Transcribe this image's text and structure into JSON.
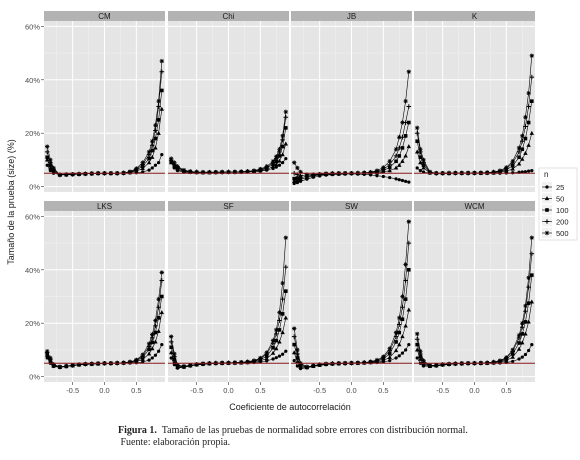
{
  "chart_data": {
    "type": "line",
    "panels": [
      "CM",
      "Chi",
      "JB",
      "K",
      "LKS",
      "SF",
      "SW",
      "WCM"
    ],
    "xlabel": "Coeficiente de autocorrelación",
    "ylabel": "Tamaño de la prueba (size) (%)",
    "x_ticks": [
      "-0.5",
      "0.0",
      "0.5"
    ],
    "x_tick_values": [
      -0.5,
      0.0,
      0.5
    ],
    "y_ticks": [
      "0%",
      "20%",
      "40%",
      "60%"
    ],
    "y_tick_values": [
      0,
      20,
      40,
      60
    ],
    "xlim": [
      -0.95,
      0.95
    ],
    "ylim": [
      -2,
      62
    ],
    "reference_line": 5,
    "grid": true,
    "legend": {
      "title": "n",
      "position": "right",
      "entries": [
        {
          "label": "25",
          "symbol": "dot"
        },
        {
          "label": "50",
          "symbol": "triangle"
        },
        {
          "label": "100",
          "symbol": "square"
        },
        {
          "label": "200",
          "symbol": "plus"
        },
        {
          "label": "500",
          "symbol": "star"
        }
      ]
    },
    "x": [
      -0.9,
      -0.85,
      -0.8,
      -0.7,
      -0.6,
      -0.5,
      -0.4,
      -0.3,
      -0.2,
      -0.1,
      0.0,
      0.1,
      0.2,
      0.3,
      0.4,
      0.5,
      0.6,
      0.7,
      0.75,
      0.8,
      0.85,
      0.9
    ],
    "series_names": [
      "25",
      "50",
      "100",
      "200",
      "500"
    ],
    "data": {
      "CM": [
        [
          8,
          6,
          5,
          4.6,
          4.7,
          4.8,
          4.8,
          4.9,
          4.9,
          5,
          5,
          5,
          5,
          5,
          5.1,
          5.2,
          5.5,
          6.2,
          7,
          8,
          9,
          12
        ],
        [
          10,
          7,
          5.5,
          4.5,
          4.5,
          4.6,
          4.7,
          4.8,
          4.9,
          5,
          5,
          5,
          5,
          5.1,
          5.3,
          5.8,
          6.8,
          9,
          11,
          14.5,
          20,
          29
        ],
        [
          11,
          8,
          6,
          4.4,
          4.5,
          4.6,
          4.7,
          4.8,
          4.9,
          5,
          5,
          5,
          5,
          5.1,
          5.4,
          6.2,
          7.6,
          10.5,
          13.5,
          18,
          25,
          36
        ],
        [
          13,
          9,
          6.5,
          4.4,
          4.5,
          4.6,
          4.7,
          4.8,
          4.9,
          5,
          5,
          5,
          5,
          5.1,
          5.5,
          6.5,
          8.3,
          12,
          15.5,
          21,
          30,
          43
        ],
        [
          15,
          10,
          7,
          4.4,
          4.5,
          4.6,
          4.7,
          4.8,
          4.9,
          5,
          5,
          5,
          5,
          5.2,
          5.6,
          6.8,
          9,
          13,
          17,
          23,
          32,
          47
        ]
      ],
      "Chi": [
        [
          9,
          7,
          6,
          5.4,
          5.3,
          5.2,
          5.2,
          5.3,
          5.3,
          5.3,
          5.4,
          5.4,
          5.4,
          5.5,
          5.6,
          5.8,
          6.2,
          6.8,
          7.3,
          8,
          9,
          10.5
        ],
        [
          9,
          7.5,
          6.5,
          5.6,
          5.4,
          5.3,
          5.3,
          5.3,
          5.3,
          5.4,
          5.4,
          5.4,
          5.5,
          5.6,
          5.7,
          6,
          6.5,
          7.5,
          8.3,
          9.6,
          12,
          16
        ],
        [
          9.5,
          8,
          7,
          5.8,
          5.5,
          5.4,
          5.3,
          5.3,
          5.4,
          5.4,
          5.4,
          5.5,
          5.5,
          5.6,
          5.8,
          6.2,
          7,
          8.3,
          9.5,
          11.5,
          15,
          22
        ],
        [
          10,
          8.5,
          7.3,
          6,
          5.6,
          5.5,
          5.4,
          5.4,
          5.4,
          5.4,
          5.5,
          5.5,
          5.6,
          5.7,
          5.9,
          6.4,
          7.3,
          9,
          10.5,
          13,
          17.5,
          26
        ],
        [
          10.5,
          9,
          7.6,
          6.2,
          5.7,
          5.5,
          5.4,
          5.4,
          5.4,
          5.5,
          5.5,
          5.5,
          5.6,
          5.7,
          6,
          6.6,
          7.6,
          9.5,
          11.3,
          14,
          19,
          28
        ]
      ],
      "JB": [
        [
          1.2,
          1.5,
          2,
          2.8,
          3.5,
          4,
          4.3,
          4.5,
          4.6,
          4.7,
          4.8,
          4.7,
          4.6,
          4.4,
          4.1,
          3.8,
          3.4,
          2.9,
          2.6,
          2.3,
          2,
          1.7
        ],
        [
          2,
          2.4,
          2.8,
          3.4,
          4,
          4.4,
          4.6,
          4.7,
          4.8,
          4.9,
          5,
          5,
          5,
          5.1,
          5.2,
          5.5,
          6,
          7,
          8,
          9.5,
          11.5,
          15
        ],
        [
          3,
          3.2,
          3.4,
          3.8,
          4.2,
          4.5,
          4.7,
          4.8,
          4.9,
          5,
          5,
          5,
          5.1,
          5.2,
          5.5,
          6,
          7.2,
          9.5,
          11.5,
          14.5,
          19,
          24
        ],
        [
          5,
          4.5,
          4.2,
          4,
          4.3,
          4.6,
          4.8,
          4.9,
          5,
          5,
          5,
          5.1,
          5.2,
          5.3,
          5.7,
          6.5,
          8.2,
          11.5,
          14.5,
          18.5,
          24,
          30
        ],
        [
          9,
          7,
          5.5,
          4.5,
          4.5,
          4.7,
          4.9,
          5,
          5,
          5,
          5,
          5.1,
          5.2,
          5.4,
          6,
          7.2,
          9.5,
          14,
          18.5,
          24,
          32,
          43
        ]
      ],
      "K": [
        [
          7,
          6,
          5.5,
          5,
          4.9,
          4.9,
          4.9,
          5,
          5,
          5,
          5,
          5,
          5,
          5,
          5,
          5.1,
          5.2,
          5.4,
          5.5,
          5.6,
          5.8,
          6
        ],
        [
          13,
          9,
          7,
          5.2,
          5,
          5,
          5,
          5.1,
          5.1,
          5.1,
          5.1,
          5.1,
          5.1,
          5.2,
          5.4,
          5.8,
          6.6,
          8.5,
          10.3,
          12.5,
          15.5,
          20
        ],
        [
          17,
          11,
          8,
          5.3,
          5,
          5,
          5,
          5.1,
          5.1,
          5.1,
          5.1,
          5.1,
          5.2,
          5.3,
          5.6,
          6.3,
          7.8,
          11,
          14,
          18,
          24,
          32
        ],
        [
          20,
          13,
          9,
          5.4,
          5,
          5,
          5.1,
          5.1,
          5.1,
          5.1,
          5.1,
          5.2,
          5.2,
          5.4,
          5.8,
          6.8,
          8.8,
          13,
          17,
          22.5,
          30,
          41
        ],
        [
          22,
          14,
          10,
          5.5,
          5.1,
          5.1,
          5.1,
          5.1,
          5.1,
          5.1,
          5.2,
          5.2,
          5.3,
          5.5,
          6,
          7.2,
          9.5,
          14.5,
          19,
          26,
          35,
          49
        ]
      ],
      "LKS": [
        [
          7,
          5,
          3.8,
          3.5,
          3.8,
          4.1,
          4.4,
          4.6,
          4.7,
          4.8,
          4.9,
          5,
          5,
          5,
          5.1,
          5.2,
          5.5,
          6.2,
          7,
          8,
          9.5,
          12
        ],
        [
          8,
          5.5,
          4,
          3.5,
          3.8,
          4.1,
          4.4,
          4.6,
          4.7,
          4.8,
          4.9,
          5,
          5,
          5.1,
          5.3,
          5.6,
          6.5,
          8.5,
          10.5,
          13,
          17,
          24
        ],
        [
          8.5,
          6,
          4.2,
          3.6,
          3.9,
          4.2,
          4.5,
          4.7,
          4.8,
          4.9,
          5,
          5,
          5.1,
          5.2,
          5.4,
          5.9,
          7.2,
          10.2,
          12.8,
          16.5,
          22,
          30
        ],
        [
          9,
          6.5,
          4.4,
          3.6,
          3.9,
          4.2,
          4.5,
          4.7,
          4.8,
          4.9,
          5,
          5,
          5.1,
          5.2,
          5.5,
          6.1,
          7.7,
          11.3,
          14.5,
          19,
          26,
          36
        ],
        [
          9.5,
          7,
          4.6,
          3.7,
          4,
          4.3,
          4.5,
          4.7,
          4.8,
          4.9,
          5,
          5,
          5.1,
          5.2,
          5.5,
          6.3,
          8.2,
          12.3,
          15.8,
          21,
          29,
          39
        ]
      ],
      "SF": [
        [
          7,
          4.5,
          3.2,
          3.5,
          4,
          4.4,
          4.6,
          4.8,
          4.9,
          5,
          5,
          5.1,
          5.1,
          5.2,
          5.3,
          5.5,
          5.9,
          6.6,
          7.1,
          7.7,
          8.4,
          9.5
        ],
        [
          9,
          5.5,
          3.5,
          3.6,
          4.1,
          4.5,
          4.7,
          4.9,
          5,
          5,
          5.1,
          5.1,
          5.2,
          5.3,
          5.5,
          5.9,
          6.8,
          8.8,
          10.5,
          13,
          16.5,
          22
        ],
        [
          11,
          6.5,
          3.8,
          3.7,
          4.2,
          4.5,
          4.8,
          4.9,
          5,
          5.1,
          5.1,
          5.2,
          5.3,
          5.4,
          5.7,
          6.3,
          7.7,
          10.8,
          13.5,
          17.5,
          23.5,
          32
        ],
        [
          13,
          7.5,
          4.1,
          3.8,
          4.2,
          4.6,
          4.8,
          5,
          5.1,
          5.1,
          5.2,
          5.2,
          5.3,
          5.5,
          5.9,
          6.7,
          8.5,
          12.5,
          16,
          21,
          29,
          41
        ],
        [
          15,
          8.5,
          4.4,
          3.9,
          4.3,
          4.6,
          4.9,
          5,
          5.1,
          5.2,
          5.2,
          5.3,
          5.4,
          5.6,
          6,
          7,
          9,
          13.5,
          17.5,
          24,
          35,
          52
        ]
      ],
      "SW": [
        [
          6,
          4,
          3,
          3.3,
          3.8,
          4.2,
          4.5,
          4.7,
          4.8,
          4.9,
          5,
          5,
          5.1,
          5.2,
          5.3,
          5.5,
          6,
          7,
          7.8,
          8.8,
          10,
          12
        ],
        [
          9,
          5.5,
          3.5,
          3.4,
          3.9,
          4.3,
          4.6,
          4.8,
          4.9,
          5,
          5,
          5.1,
          5.2,
          5.3,
          5.5,
          6,
          7.2,
          9.8,
          12,
          15,
          19,
          25
        ],
        [
          12,
          7,
          4,
          3.5,
          4,
          4.4,
          4.7,
          4.8,
          4.9,
          5,
          5.1,
          5.1,
          5.2,
          5.4,
          5.8,
          6.6,
          8.6,
          13,
          16.5,
          21.5,
          29,
          40
        ],
        [
          15,
          8.5,
          4.5,
          3.6,
          4.1,
          4.5,
          4.7,
          4.9,
          5,
          5,
          5.1,
          5.2,
          5.3,
          5.5,
          6,
          7.1,
          9.7,
          15,
          19.5,
          26,
          36,
          50
        ],
        [
          18,
          10,
          5,
          3.7,
          4.1,
          4.5,
          4.8,
          4.9,
          5,
          5.1,
          5.1,
          5.2,
          5.3,
          5.6,
          6.2,
          7.5,
          10.5,
          16.5,
          22,
          30,
          42,
          58
        ]
      ],
      "WCM": [
        [
          7,
          5,
          4,
          3.8,
          4,
          4.3,
          4.6,
          4.8,
          4.9,
          5,
          5,
          5,
          5,
          5,
          5.1,
          5.3,
          5.7,
          6.6,
          7.3,
          8.3,
          9.8,
          12
        ],
        [
          10,
          6.5,
          4.5,
          3.9,
          4.1,
          4.4,
          4.6,
          4.8,
          4.9,
          5,
          5,
          5,
          5.1,
          5.2,
          5.4,
          6,
          7.3,
          10.3,
          12.7,
          16,
          20.5,
          28
        ],
        [
          12,
          7.5,
          5,
          4,
          4.2,
          4.5,
          4.7,
          4.8,
          4.9,
          5,
          5,
          5.1,
          5.1,
          5.3,
          5.7,
          6.5,
          8.5,
          12.6,
          16,
          20.5,
          27.5,
          38
        ],
        [
          14,
          8.5,
          5.5,
          4.1,
          4.2,
          4.5,
          4.7,
          4.8,
          4.9,
          5,
          5,
          5.1,
          5.2,
          5.4,
          5.9,
          6.9,
          9.4,
          14.5,
          18.5,
          24.5,
          33.5,
          46
        ],
        [
          16,
          9.5,
          6,
          4.2,
          4.3,
          4.6,
          4.7,
          4.9,
          5,
          5,
          5.1,
          5.1,
          5.2,
          5.5,
          6,
          7.2,
          10,
          15.5,
          20,
          26.5,
          37,
          52
        ]
      ]
    }
  },
  "caption": {
    "label": "Figura 1.",
    "text": "Tamaño de las pruebas de normalidad sobre errores con distribución normal.",
    "source": "Fuente: elaboración propia."
  },
  "colors": {
    "panel_bg": "#e5e5e5",
    "grid_major": "#ffffff",
    "strip_bg": "#b3b3b3",
    "reference_line": "#8b1a1a",
    "series": "#000000"
  }
}
